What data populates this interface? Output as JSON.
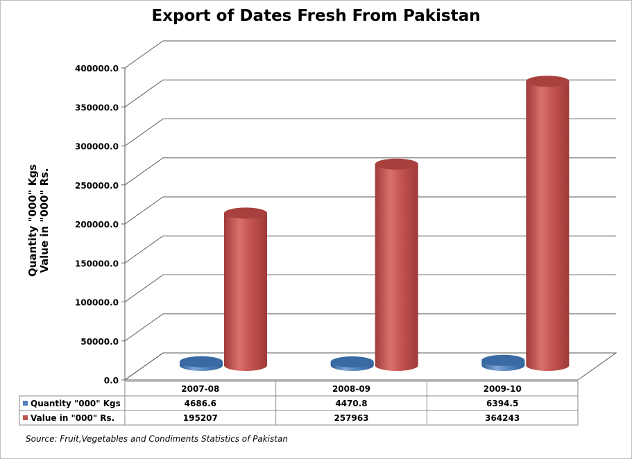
{
  "chart_data": {
    "type": "bar",
    "style": "3d-cylinder",
    "title": "Export of Dates Fresh From Pakistan",
    "ylabel_lines": [
      "Quantity \"000\" Kgs",
      "Value in \"000\" Rs."
    ],
    "categories": [
      "2007-08",
      "2008-09",
      "2009-10"
    ],
    "series": [
      {
        "name": "Quantity \"000\" Kgs",
        "color": "#4f81bd",
        "values": [
          4686.6,
          4470.8,
          6394.5
        ],
        "labels": [
          "4686.6",
          "4470.8",
          "6394.5"
        ]
      },
      {
        "name": "Value in \"000\" Rs.",
        "color": "#c0504d",
        "values": [
          195207,
          257963,
          364243
        ],
        "labels": [
          "195207",
          "257963",
          "364243"
        ]
      }
    ],
    "ylim": [
      0,
      400000
    ],
    "yticks": [
      0,
      50000,
      100000,
      150000,
      200000,
      250000,
      300000,
      350000,
      400000
    ],
    "ytick_labels": [
      "0.0",
      "50000.0",
      "100000.0",
      "150000.0",
      "200000.0",
      "250000.0",
      "300000.0",
      "350000.0",
      "400000.0"
    ],
    "grid": true,
    "legend": "data-table-below"
  },
  "source_note": "Source: Fruit,Vegetables and Condiments Statistics of Pakistan"
}
